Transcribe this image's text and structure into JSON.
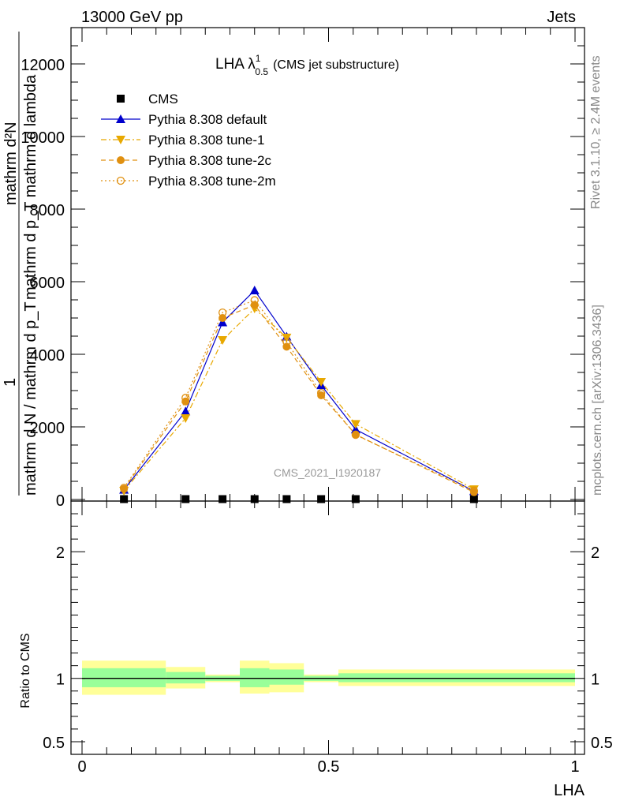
{
  "header": {
    "left": "13000 GeV pp",
    "right": "Jets"
  },
  "side_labels": {
    "rivet": "Rivet 3.1.10, ≥ 2.4M events",
    "mcplots": "mcplots.cern.ch [arXiv:1306.3436]"
  },
  "chart_data": [
    {
      "type": "line",
      "title_main": "LHA λ",
      "title_sup": "1",
      "title_sub": "0.5",
      "title_tail": "(CMS jet substructure)",
      "watermark": "CMS_2021_I1920187",
      "ylabel_top": "1",
      "ylabel_top_right": "mathrm d²N",
      "ylabel_bottom": "mathrm d N / mathrm d p_T",
      "ylabel_mid": "mathrm d p_T mathrm d lambda",
      "ylim": [
        0,
        13000
      ],
      "xlim": [
        0,
        1
      ],
      "y_ticks": [
        0,
        2000,
        4000,
        6000,
        8000,
        10000,
        12000
      ],
      "y_tick_labels": [
        "0",
        "2000",
        "4000",
        "6000",
        "8000",
        "10000",
        "12000"
      ],
      "legend_position": "top-left",
      "x": [
        0.085,
        0.21,
        0.285,
        0.35,
        0.415,
        0.485,
        0.555,
        0.795
      ],
      "series": [
        {
          "name": "CMS",
          "marker": "square",
          "color": "#000000",
          "style": "none",
          "values": [
            10,
            10,
            10,
            10,
            10,
            10,
            10,
            10
          ]
        },
        {
          "name": "Pythia 8.308 default",
          "marker": "triangle-up",
          "color": "#0000cc",
          "style": "solid",
          "values": [
            270,
            2430,
            4880,
            5760,
            4490,
            3150,
            1930,
            230
          ]
        },
        {
          "name": "Pythia 8.308 tune-1",
          "marker": "triangle-down",
          "color": "#e8a800",
          "style": "dashdot",
          "values": [
            240,
            2240,
            4390,
            5260,
            4460,
            3240,
            2080,
            280
          ]
        },
        {
          "name": "Pythia 8.308 tune-2c",
          "marker": "circle-filled",
          "color": "#e09010",
          "style": "dashed",
          "values": [
            290,
            2700,
            5000,
            5360,
            4210,
            2870,
            1790,
            200
          ]
        },
        {
          "name": "Pythia 8.308 tune-2m",
          "marker": "circle-open",
          "color": "#e09010",
          "style": "dotted",
          "values": [
            320,
            2800,
            5150,
            5490,
            4340,
            2930,
            1780,
            240
          ]
        }
      ]
    },
    {
      "type": "area",
      "ylabel": "Ratio to CMS",
      "xlabel": "LHA",
      "ylim": [
        0.4,
        2.4
      ],
      "xlim": [
        0,
        1
      ],
      "y_ticks": [
        0.5,
        1,
        2
      ],
      "y_tick_labels": [
        "0.5",
        "1",
        "2"
      ],
      "x_ticks": [
        0,
        0.5,
        1
      ],
      "x_tick_labels": [
        "0",
        "0.5",
        "1"
      ],
      "reference": 1,
      "band_colors": {
        "inner": "#99ff99",
        "outer": "#ffff99"
      },
      "bins": [
        {
          "x0": 0.0,
          "x1": 0.17,
          "inner": [
            0.93,
            1.08
          ],
          "outer": [
            0.87,
            1.14
          ]
        },
        {
          "x0": 0.17,
          "x1": 0.25,
          "inner": [
            0.96,
            1.05
          ],
          "outer": [
            0.92,
            1.09
          ]
        },
        {
          "x0": 0.25,
          "x1": 0.32,
          "inner": [
            0.98,
            1.02
          ],
          "outer": [
            0.97,
            1.03
          ]
        },
        {
          "x0": 0.32,
          "x1": 0.38,
          "inner": [
            0.93,
            1.08
          ],
          "outer": [
            0.88,
            1.14
          ]
        },
        {
          "x0": 0.38,
          "x1": 0.45,
          "inner": [
            0.95,
            1.07
          ],
          "outer": [
            0.89,
            1.12
          ]
        },
        {
          "x0": 0.45,
          "x1": 0.52,
          "inner": [
            0.98,
            1.02
          ],
          "outer": [
            0.97,
            1.03
          ]
        },
        {
          "x0": 0.52,
          "x1": 1.0,
          "inner": [
            0.97,
            1.04
          ],
          "outer": [
            0.94,
            1.07
          ]
        }
      ]
    }
  ]
}
